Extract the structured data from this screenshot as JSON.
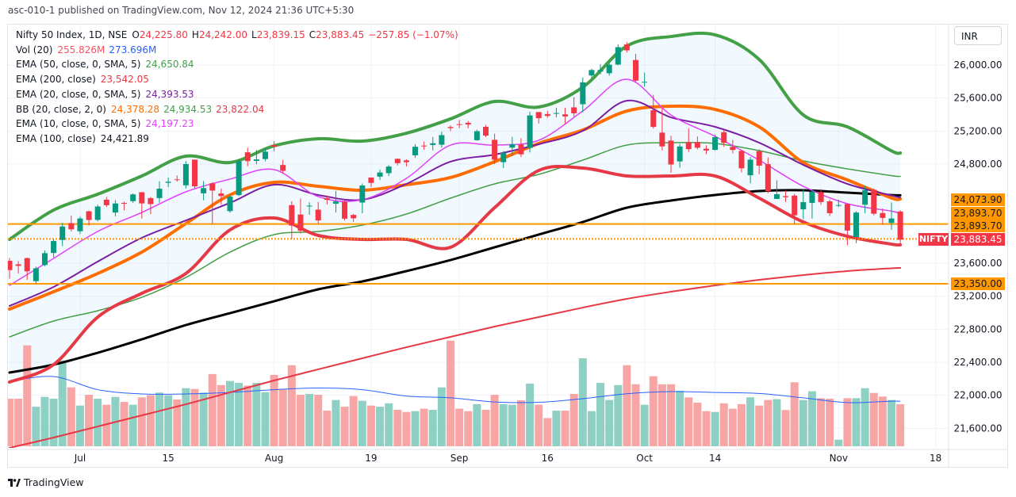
{
  "header": {
    "published": "asc-010-1 published on TradingView.com, Nov 12, 2024 21:36 UTC+5:30"
  },
  "legend": {
    "symbol": "Nifty 50 Index, 1D, NSE",
    "o_label": "O",
    "o": "24,225.80",
    "h_label": "H",
    "h": "24,242.00",
    "l_label": "L",
    "l": "23,839.15",
    "c_label": "C",
    "c": "23,883.45",
    "change": "−257.85 (−1.07%)",
    "vol_label": "Vol (20)",
    "vol": "255.826M",
    "vol_ma": "273.696M",
    "ema50_label": "EMA (50, close, 0, SMA, 5)",
    "ema50": "24,650.84",
    "ema200_label": "EMA (200, close)",
    "ema200": "23,542.05",
    "ema20_label": "EMA (20, close, 0, SMA, 5)",
    "ema20": "24,393.53",
    "bb_label": "BB (20, close, 2, 0)",
    "bb_basis": "24,378.28",
    "bb_upper": "24,934.53",
    "bb_lower": "23,822.04",
    "ema10_label": "EMA (10, close, 0, SMA, 5)",
    "ema10": "24,197.23",
    "ema100_label": "EMA (100, close)",
    "ema100": "24,421.89"
  },
  "currency_button": "INR",
  "price_axis": {
    "ticks": [
      "26,000.00",
      "25,600.00",
      "25,200.00",
      "24,800.00",
      "23,600.00",
      "23,200.00",
      "22,800.00",
      "22,400.00",
      "22,000.00",
      "21,600.00"
    ]
  },
  "price_labels": {
    "l1": "24,073.90",
    "l2": "23,893.70",
    "l3": "23,893.70",
    "l4": "23,350.00",
    "symbol_tag": "NIFTY",
    "last": "23,883.45"
  },
  "time_axis": {
    "labels": [
      {
        "text": "Jul",
        "date": "2024-07-01"
      },
      {
        "text": "15",
        "date": "2024-07-15"
      },
      {
        "text": "Aug",
        "date": "2024-08-01"
      },
      {
        "text": "19",
        "date": "2024-08-19"
      },
      {
        "text": "Sep",
        "date": "2024-09-02"
      },
      {
        "text": "16",
        "date": "2024-09-16"
      },
      {
        "text": "Oct",
        "date": "2024-10-01"
      },
      {
        "text": "14",
        "date": "2024-10-14"
      },
      {
        "text": "Nov",
        "date": "2024-11-01"
      },
      {
        "text": "18",
        "date": "2024-11-18"
      }
    ]
  },
  "footer": {
    "brand": "TradingView"
  },
  "chart_data": {
    "type": "candlestick",
    "colors": {
      "up": "#089981",
      "down": "#f23645",
      "vol_up": "#8fd0c5",
      "vol_down": "#f7a6a5",
      "hline": "#ff9800",
      "bb_fill": "#2196f3"
    },
    "candle_fields": [
      "date",
      "open",
      "high",
      "low",
      "close",
      "volume_millions"
    ],
    "candles": [
      [
        "2024-06-19",
        23629,
        23664,
        23412,
        23516,
        290
      ],
      [
        "2024-06-20",
        23586,
        23624,
        23476,
        23567,
        290
      ],
      [
        "2024-06-21",
        23661,
        23668,
        23398,
        23501,
        615
      ],
      [
        "2024-06-24",
        23382,
        23558,
        23350,
        23538,
        241
      ],
      [
        "2024-06-25",
        23578,
        23754,
        23562,
        23721,
        301
      ],
      [
        "2024-06-26",
        23723,
        23889,
        23670,
        23868,
        290
      ],
      [
        "2024-06-27",
        23881,
        24087,
        23806,
        24044,
        523
      ],
      [
        "2024-06-28",
        24085,
        24174,
        23985,
        24010,
        359
      ],
      [
        "2024-07-01",
        23987,
        24164,
        23953,
        24141,
        248
      ],
      [
        "2024-07-02",
        24228,
        24236,
        24056,
        24123,
        314
      ],
      [
        "2024-07-03",
        24124,
        24309,
        24107,
        24286,
        290
      ],
      [
        "2024-07-04",
        24369,
        24401,
        24281,
        24302,
        253
      ],
      [
        "2024-07-05",
        24213,
        24363,
        24168,
        24323,
        301
      ],
      [
        "2024-07-08",
        24330,
        24344,
        24240,
        24320,
        270
      ],
      [
        "2024-07-09",
        24351,
        24444,
        24331,
        24433,
        253
      ],
      [
        "2024-07-10",
        24459,
        24461,
        24141,
        24324,
        298
      ],
      [
        "2024-07-11",
        24388,
        24402,
        24193,
        24316,
        311
      ],
      [
        "2024-07-12",
        24388,
        24592,
        24332,
        24502,
        327
      ],
      [
        "2024-07-15",
        24573,
        24635,
        24522,
        24586,
        311
      ],
      [
        "2024-07-16",
        24615,
        24661,
        24587,
        24613,
        285
      ],
      [
        "2024-07-18",
        24543,
        24837,
        24505,
        24800,
        354
      ],
      [
        "2024-07-19",
        24854,
        24855,
        24508,
        24530,
        349
      ],
      [
        "2024-07-22",
        24446,
        24595,
        24362,
        24509,
        327
      ],
      [
        "2024-07-23",
        24568,
        24582,
        24074,
        24479,
        440
      ],
      [
        "2024-07-24",
        24444,
        24504,
        24307,
        24413,
        373
      ],
      [
        "2024-07-25",
        24230,
        24426,
        24211,
        24406,
        398
      ],
      [
        "2024-07-26",
        24424,
        24861,
        24411,
        24834,
        386
      ],
      [
        "2024-07-29",
        24943,
        24999,
        24774,
        24836,
        370
      ],
      [
        "2024-07-30",
        24839,
        24971,
        24798,
        24857,
        386
      ],
      [
        "2024-07-31",
        24861,
        24985,
        24834,
        24951,
        330
      ],
      [
        "2024-08-01",
        25030,
        25078,
        24956,
        25010,
        435
      ],
      [
        "2024-08-02",
        24789,
        24851,
        24687,
        24718,
        346
      ],
      [
        "2024-08-05",
        24303,
        24350,
        23893,
        24055,
        494
      ],
      [
        "2024-08-06",
        24189,
        24383,
        23960,
        23992,
        314
      ],
      [
        "2024-08-07",
        24289,
        24337,
        24185,
        24297,
        319
      ],
      [
        "2024-08-08",
        24248,
        24341,
        24079,
        24117,
        314
      ],
      [
        "2024-08-09",
        24386,
        24420,
        24311,
        24367,
        217
      ],
      [
        "2024-08-12",
        24320,
        24473,
        24212,
        24347,
        282
      ],
      [
        "2024-08-13",
        24342,
        24359,
        24116,
        24139,
        241
      ],
      [
        "2024-08-14",
        24184,
        24196,
        24099,
        24143,
        306
      ],
      [
        "2024-08-16",
        24334,
        24563,
        24204,
        24541,
        277
      ],
      [
        "2024-08-19",
        24637,
        24638,
        24522,
        24572,
        248
      ],
      [
        "2024-08-20",
        24648,
        24734,
        24607,
        24698,
        241
      ],
      [
        "2024-08-21",
        24690,
        24787,
        24654,
        24770,
        262
      ],
      [
        "2024-08-22",
        24864,
        24867,
        24784,
        24811,
        222
      ],
      [
        "2024-08-23",
        24845,
        24858,
        24771,
        24823,
        209
      ],
      [
        "2024-08-26",
        24906,
        25043,
        24875,
        25010,
        214
      ],
      [
        "2024-08-27",
        25024,
        25073,
        24973,
        25017,
        229
      ],
      [
        "2024-08-28",
        25031,
        25129,
        24965,
        25052,
        222
      ],
      [
        "2024-08-29",
        25035,
        25193,
        24999,
        25151,
        359
      ],
      [
        "2024-08-30",
        25249,
        25268,
        25199,
        25236,
        644
      ],
      [
        "2024-09-02",
        25283,
        25333,
        25235,
        25279,
        229
      ],
      [
        "2024-09-03",
        25300,
        25321,
        25235,
        25279,
        214
      ],
      [
        "2024-09-04",
        25089,
        25217,
        25083,
        25198,
        257
      ],
      [
        "2024-09-05",
        25251,
        25275,
        25127,
        25145,
        222
      ],
      [
        "2024-09-06",
        25094,
        25168,
        24801,
        24852,
        314
      ],
      [
        "2024-09-09",
        24823,
        24957,
        24753,
        24936,
        257
      ],
      [
        "2024-09-10",
        24999,
        25130,
        24896,
        25041,
        253
      ],
      [
        "2024-09-11",
        25035,
        25113,
        24885,
        24918,
        280
      ],
      [
        "2024-09-12",
        24995,
        25434,
        24941,
        25389,
        382
      ],
      [
        "2024-09-13",
        25430,
        25430,
        25292,
        25356,
        253
      ],
      [
        "2024-09-16",
        25406,
        25445,
        25360,
        25383,
        172
      ],
      [
        "2024-09-17",
        25416,
        25482,
        25366,
        25418,
        217
      ],
      [
        "2024-09-18",
        25402,
        25482,
        25285,
        25377,
        217
      ],
      [
        "2024-09-19",
        25487,
        25611,
        25376,
        25415,
        319
      ],
      [
        "2024-09-20",
        25525,
        25849,
        25426,
        25790,
        536
      ],
      [
        "2024-09-23",
        25873,
        25956,
        25847,
        25939,
        214
      ],
      [
        "2024-09-24",
        25921,
        26011,
        25886,
        25940,
        386
      ],
      [
        "2024-09-25",
        25900,
        26032,
        25871,
        26004,
        282
      ],
      [
        "2024-09-26",
        26005,
        26250,
        25998,
        26216,
        373
      ],
      [
        "2024-09-27",
        26249,
        26277,
        26151,
        26178,
        494
      ],
      [
        "2024-09-30",
        26061,
        26134,
        25794,
        25810,
        378
      ],
      [
        "2024-10-01",
        25788,
        25907,
        25739,
        25796,
        253
      ],
      [
        "2024-10-03",
        25452,
        25639,
        25230,
        25250,
        427
      ],
      [
        "2024-10-04",
        25181,
        25485,
        24966,
        25014,
        378
      ],
      [
        "2024-10-07",
        25084,
        25143,
        24694,
        24795,
        378
      ],
      [
        "2024-10-08",
        24832,
        25044,
        24756,
        25013,
        338
      ],
      [
        "2024-10-09",
        25066,
        25234,
        24947,
        24981,
        298
      ],
      [
        "2024-10-10",
        25067,
        25134,
        24979,
        24998,
        266
      ],
      [
        "2024-10-11",
        24986,
        25028,
        24920,
        24964,
        214
      ],
      [
        "2024-10-14",
        24972,
        25159,
        24965,
        25127,
        209
      ],
      [
        "2024-10-15",
        25186,
        25212,
        25008,
        25057,
        262
      ],
      [
        "2024-10-16",
        25008,
        25093,
        24929,
        24971,
        229
      ],
      [
        "2024-10-17",
        24960,
        24974,
        24699,
        24749,
        257
      ],
      [
        "2024-10-18",
        24664,
        24886,
        24567,
        24854,
        298
      ],
      [
        "2024-10-21",
        24956,
        24979,
        24679,
        24781,
        248
      ],
      [
        "2024-10-22",
        24799,
        24882,
        24446,
        24472,
        282
      ],
      [
        "2024-10-23",
        24378,
        24604,
        24378,
        24435,
        287
      ],
      [
        "2024-10-24",
        24412,
        24480,
        24341,
        24399,
        221
      ],
      [
        "2024-10-25",
        24418,
        24440,
        24073,
        24180,
        390
      ],
      [
        "2024-10-28",
        24252,
        24492,
        24134,
        24339,
        282
      ],
      [
        "2024-10-29",
        24329,
        24484,
        24140,
        24466,
        335
      ],
      [
        "2024-10-30",
        24461,
        24498,
        24307,
        24340,
        293
      ],
      [
        "2024-10-31",
        24349,
        24372,
        24172,
        24205,
        290
      ],
      [
        "2024-11-01",
        24302,
        24368,
        24280,
        24304,
        40
      ],
      [
        "2024-11-04",
        24316,
        24316,
        23816,
        23995,
        293
      ],
      [
        "2024-11-05",
        23916,
        24229,
        23842,
        24213,
        293
      ],
      [
        "2024-11-06",
        24308,
        24537,
        24204,
        24484,
        354
      ],
      [
        "2024-11-07",
        24489,
        24503,
        24179,
        24199,
        325
      ],
      [
        "2024-11-08",
        24207,
        24262,
        24066,
        24148,
        303
      ],
      [
        "2024-11-11",
        24087,
        24336,
        24004,
        24141,
        282
      ],
      [
        "2024-11-12",
        24225.8,
        24242,
        23839.15,
        23883.45,
        255.826
      ]
    ],
    "horizontal_lines": [
      {
        "value": 24073.9,
        "style": "solid"
      },
      {
        "value": 23893.7,
        "style": "dotted"
      },
      {
        "value": 23350.0,
        "style": "solid"
      }
    ],
    "overlays": {
      "x": [
        "2024-06-19",
        "2024-06-26",
        "2024-07-03",
        "2024-07-10",
        "2024-07-18",
        "2024-07-25",
        "2024-08-01",
        "2024-08-08",
        "2024-08-16",
        "2024-08-23",
        "2024-08-30",
        "2024-09-06",
        "2024-09-13",
        "2024-09-20",
        "2024-09-27",
        "2024-10-07",
        "2024-10-14",
        "2024-10-21",
        "2024-10-28",
        "2024-11-04",
        "2024-11-11",
        "2024-11-12"
      ],
      "series": [
        {
          "key": "bb_upper",
          "color": "#43a047",
          "width": 4,
          "values": [
            23888,
            24243,
            24435,
            24656,
            24896,
            24819,
            25021,
            25107,
            25078,
            25174,
            25347,
            25558,
            25491,
            25731,
            26230,
            26345,
            26365,
            26067,
            25395,
            25251,
            24960,
            24934.53
          ]
        },
        {
          "key": "bb_lower",
          "color": "#e53945",
          "width": 4,
          "values": [
            22160,
            22371,
            22947,
            23235,
            23475,
            24003,
            24147,
            23936,
            23888,
            23888,
            23792,
            24272,
            24723,
            24752,
            24656,
            24656,
            24656,
            24387,
            24099,
            23926,
            23830,
            23822.04
          ]
        },
        {
          "key": "bb_basis",
          "color": "#ff6d00",
          "width": 4,
          "values": [
            23043,
            23254,
            23475,
            23734,
            24080,
            24426,
            24579,
            24531,
            24483,
            24550,
            24637,
            24829,
            25050,
            25213,
            25443,
            25501,
            25462,
            25251,
            24819,
            24608,
            24390,
            24378.28
          ]
        },
        {
          "key": "ema200",
          "color": "#e53945",
          "width": 2,
          "values": [
            21363,
            21488,
            21622,
            21757,
            21891,
            22035,
            22179,
            22314,
            22448,
            22582,
            22707,
            22832,
            22947,
            23062,
            23168,
            23254,
            23331,
            23398,
            23456,
            23504,
            23538,
            23542.05
          ]
        },
        {
          "key": "ema100",
          "color": "#000000",
          "width": 3,
          "values": [
            22275,
            22371,
            22515,
            22678,
            22851,
            22995,
            23139,
            23283,
            23379,
            23504,
            23638,
            23792,
            23946,
            24099,
            24272,
            24358,
            24426,
            24474,
            24483,
            24454,
            24425,
            24421.89
          ]
        },
        {
          "key": "ema50",
          "color": "#43a047",
          "width": 1.5,
          "values": [
            22707,
            22899,
            23024,
            23187,
            23427,
            23734,
            23946,
            23984,
            24061,
            24195,
            24387,
            24560,
            24675,
            24848,
            25030,
            25059,
            25050,
            24963,
            24838,
            24742,
            24660,
            24650.84
          ]
        },
        {
          "key": "ema20",
          "color": "#7b1fa2",
          "width": 2,
          "values": [
            23082,
            23312,
            23619,
            23907,
            24118,
            24330,
            24550,
            24426,
            24368,
            24560,
            24829,
            24915,
            25040,
            25203,
            25568,
            25366,
            25251,
            25059,
            24790,
            24560,
            24420,
            24393.53
          ]
        },
        {
          "key": "ema10",
          "color": "#e040fb",
          "width": 1.5,
          "values": [
            23331,
            23658,
            23984,
            24214,
            24464,
            24618,
            24733,
            24406,
            24368,
            24627,
            25030,
            25030,
            25088,
            25443,
            25827,
            25395,
            25136,
            24848,
            24531,
            24320,
            24230,
            24197.23
          ]
        }
      ],
      "volume_ma": {
        "color": "#2962ff",
        "values": [
          396,
          425,
          345,
          319,
          319,
          328,
          345,
          355,
          345,
          306,
          295,
          270,
          268,
          290,
          320,
          333,
          328,
          322,
          295,
          266,
          275,
          273.696
        ]
      }
    }
  }
}
